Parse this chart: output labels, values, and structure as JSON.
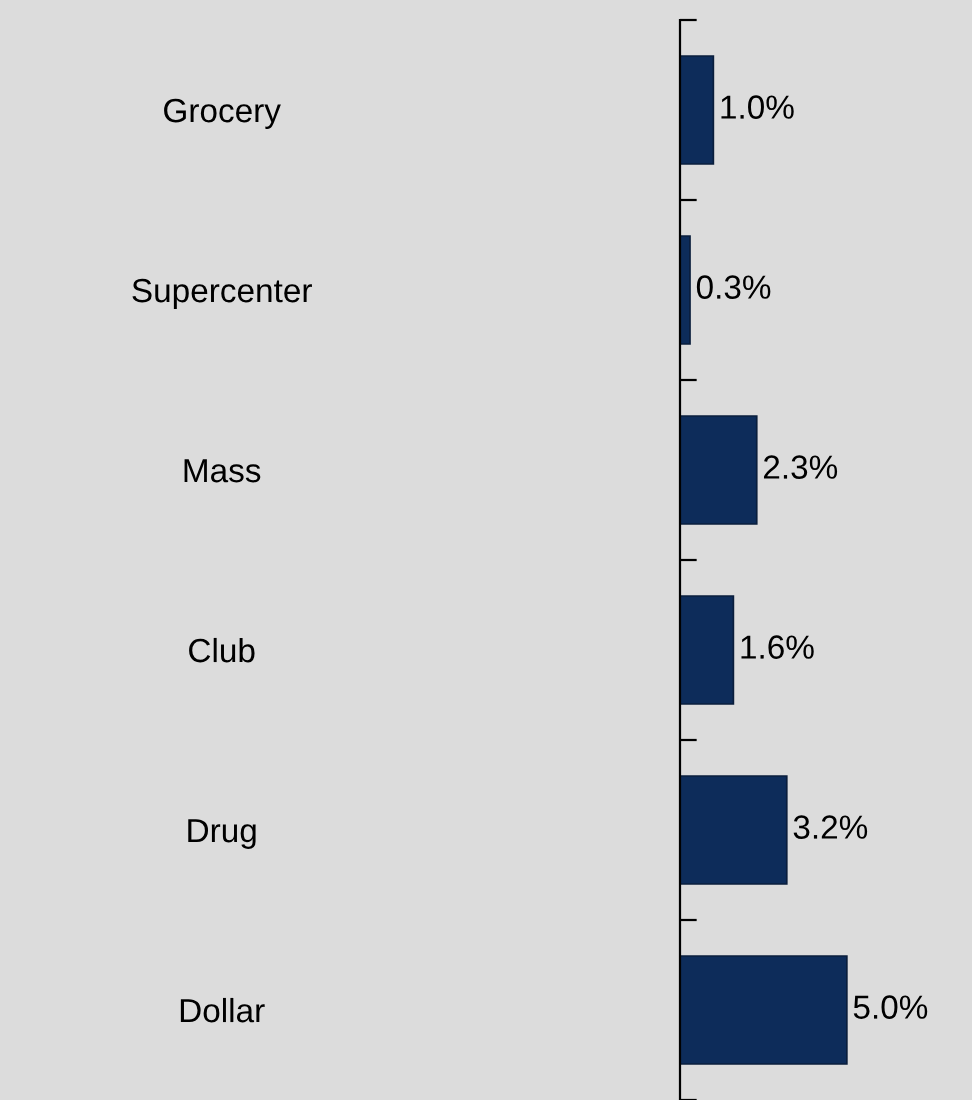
{
  "chart_data": {
    "type": "bar",
    "orientation": "horizontal",
    "categories": [
      "Grocery",
      "Supercenter",
      "Mass",
      "Club",
      "Drug",
      "Dollar"
    ],
    "values": [
      1.0,
      0.3,
      2.3,
      1.6,
      3.2,
      5.0
    ],
    "value_labels": [
      "1.0%",
      "0.3%",
      "2.3%",
      "1.6%",
      "3.2%",
      "5.0%"
    ],
    "color": "#0d2c5a",
    "grid": false,
    "legend": false
  }
}
